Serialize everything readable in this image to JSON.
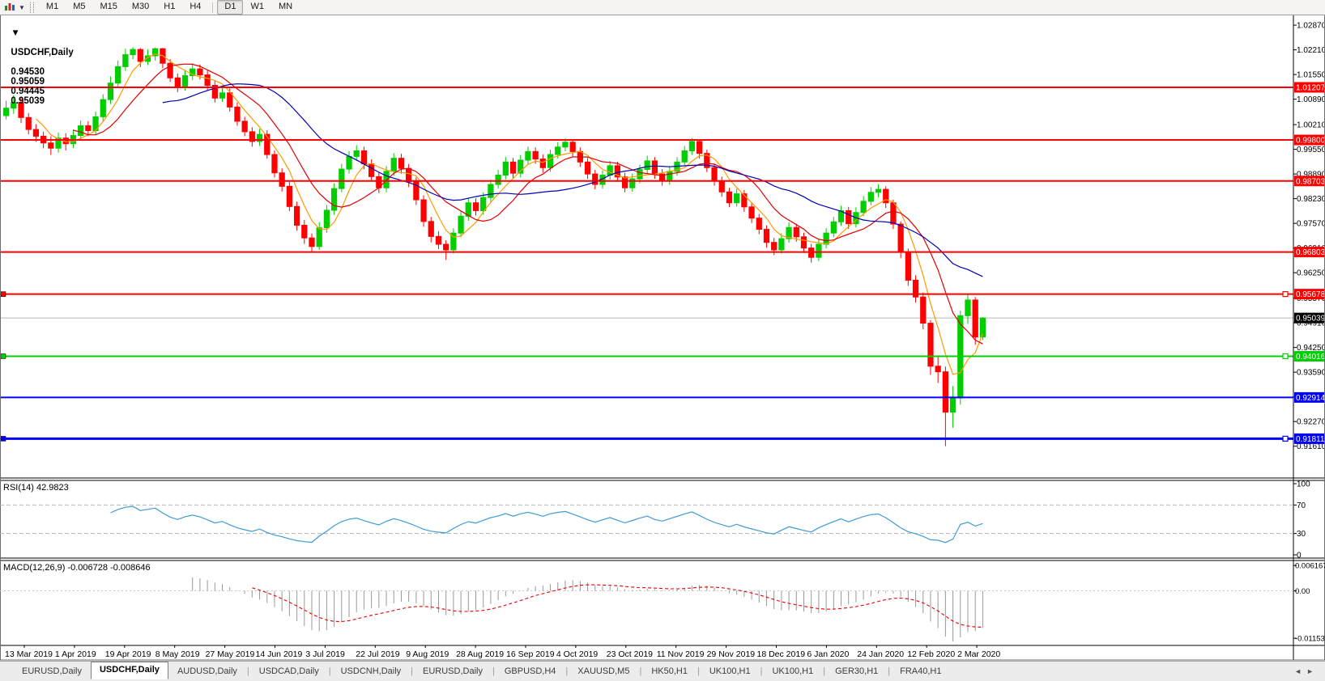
{
  "toolbar": {
    "timeframes": [
      "M1",
      "M5",
      "M15",
      "M30",
      "H1",
      "H4",
      "D1",
      "W1",
      "MN"
    ],
    "active_timeframe": "D1",
    "left_icons": [
      "chart-icon",
      "dropdown-caret-icon"
    ]
  },
  "chart_header": {
    "collapse_icon": "▼",
    "symbol": "USDCHF,Daily",
    "open": "0.94530",
    "high": "0.95059",
    "low": "0.94445",
    "close": "0.95039"
  },
  "chart_data": {
    "type": "candlestick",
    "symbol": "USDCHF",
    "timeframe": "Daily",
    "price_axis": {
      "min": 0.9076,
      "max": 1.0311,
      "ticks": [
        "1.02870",
        "1.02210",
        "1.01550",
        "1.00890",
        "1.00210",
        "0.99550",
        "0.98890",
        "0.98230",
        "0.97570",
        "0.96910",
        "0.96250",
        "0.95570",
        "0.94910",
        "0.94250",
        "0.93590",
        "0.92930",
        "0.92270",
        "0.91610"
      ]
    },
    "date_labels": [
      "13 Mar 2019",
      "1 Apr 2019",
      "19 Apr 2019",
      "8 May 2019",
      "27 May 2019",
      "14 Jun 2019",
      "3 Jul 2019",
      "22 Jul 2019",
      "9 Aug 2019",
      "28 Aug 2019",
      "16 Sep 2019",
      "4 Oct 2019",
      "23 Oct 2019",
      "11 Nov 2019",
      "29 Nov 2019",
      "18 Dec 2019",
      "6 Jan 2020",
      "24 Jan 2020",
      "12 Feb 2020",
      "2 Mar 2020"
    ],
    "colors": {
      "up": "#00CE00",
      "down": "#FF0000",
      "background": "#FFFFFF",
      "border": "#000000",
      "current_line": "#B8B8B8"
    },
    "moving_averages": [
      {
        "name": "MA fast",
        "period": 5,
        "color": "#FF9900"
      },
      {
        "name": "MA mid",
        "period": 10,
        "color": "#E00000"
      },
      {
        "name": "MA slow",
        "period": 22,
        "color": "#0000B4"
      }
    ],
    "hlines": [
      {
        "price": 1.01207,
        "label": "1.01207",
        "color": "#FF0000",
        "width": 2,
        "handles": false
      },
      {
        "price": 0.998,
        "label": "0.99800",
        "color": "#FF0000",
        "width": 2,
        "handles": false
      },
      {
        "price": 0.98703,
        "label": "0.98703",
        "color": "#FF0000",
        "width": 2,
        "handles": false
      },
      {
        "price": 0.96803,
        "label": "0.96803",
        "color": "#FF0000",
        "width": 2,
        "handles": false
      },
      {
        "price": 0.95678,
        "label": "0.95678",
        "color": "#FF0000",
        "width": 2,
        "handles": true
      },
      {
        "price": 0.94016,
        "label": "0.94016",
        "color": "#00CE00",
        "width": 2,
        "handles": true
      },
      {
        "price": 0.92914,
        "label": "0.92914",
        "color": "#0000FF",
        "width": 2,
        "handles": false
      },
      {
        "price": 0.91811,
        "label": "0.91811",
        "color": "#0000FF",
        "width": 3,
        "handles": true
      }
    ],
    "current_price": {
      "value": 0.95039,
      "label": "0.95039",
      "label_bg": "#000000"
    },
    "rsi": {
      "label": "RSI(14) 42.9823",
      "period": 14,
      "current_value": 42.9823,
      "ticks": [
        "100",
        "70",
        "30",
        "0"
      ],
      "levels": [
        70,
        30
      ],
      "color": "#3E9BD5"
    },
    "macd": {
      "label": "MACD(12,26,9) -0.006728 -0.008646",
      "fast": 12,
      "slow": 26,
      "signal": 9,
      "current_macd": -0.006728,
      "current_signal": -0.008646,
      "ticks": [
        "0.006167",
        "0.00",
        "-0.011533"
      ],
      "hist_color": "#999999",
      "signal_color": "#E80000"
    },
    "candles": [
      [
        1.0045,
        1.0085,
        1.0035,
        1.0065
      ],
      [
        1.0065,
        1.01,
        1.005,
        1.008
      ],
      [
        1.008,
        1.0095,
        1.0025,
        1.004
      ],
      [
        1.004,
        1.0052,
        0.9995,
        1.0008
      ],
      [
        1.0008,
        1.0022,
        0.9975,
        0.999
      ],
      [
        0.999,
        1.0002,
        0.9958,
        0.9972
      ],
      [
        0.9972,
        0.999,
        0.994,
        0.9958
      ],
      [
        0.9958,
        1.0,
        0.9946,
        0.9985
      ],
      [
        0.9985,
        0.9998,
        0.9952,
        0.997
      ],
      [
        0.997,
        1.0008,
        0.9958,
        0.9992
      ],
      [
        0.9992,
        1.0032,
        0.998,
        1.0018
      ],
      [
        1.0018,
        1.003,
        0.999,
        1.0005
      ],
      [
        1.0005,
        1.0056,
        0.9995,
        1.0042
      ],
      [
        1.0042,
        1.0102,
        1.003,
        1.0088
      ],
      [
        1.0088,
        1.015,
        1.0076,
        1.0132
      ],
      [
        1.0132,
        1.0192,
        1.012,
        1.0176
      ],
      [
        1.0176,
        1.0224,
        1.0165,
        1.0208
      ],
      [
        1.0208,
        1.0228,
        1.0196,
        1.0222
      ],
      [
        1.0222,
        1.0226,
        1.0175,
        1.019
      ],
      [
        1.019,
        1.0222,
        1.018,
        1.0205
      ],
      [
        1.0205,
        1.0227,
        1.0192,
        1.0224
      ],
      [
        1.0224,
        1.0226,
        1.0172,
        1.0185
      ],
      [
        1.0185,
        1.0196,
        1.0135,
        1.0146
      ],
      [
        1.0146,
        1.0158,
        1.0108,
        1.0122
      ],
      [
        1.0122,
        1.0165,
        1.0112,
        1.0152
      ],
      [
        1.0152,
        1.0185,
        1.014,
        1.017
      ],
      [
        1.017,
        1.0182,
        1.0142,
        1.0154
      ],
      [
        1.0154,
        1.0166,
        1.0112,
        1.0126
      ],
      [
        1.0126,
        1.0138,
        1.008,
        1.0092
      ],
      [
        1.0092,
        1.012,
        1.0082,
        1.0106
      ],
      [
        1.0106,
        1.0118,
        1.0056,
        1.0068
      ],
      [
        1.0068,
        1.008,
        1.0018,
        1.003
      ],
      [
        1.003,
        1.0042,
        0.999,
        1.0002
      ],
      [
        1.0002,
        1.0014,
        0.9962,
        0.9976
      ],
      [
        0.9976,
        1.001,
        0.9964,
        0.9995
      ],
      [
        0.9995,
        1.0006,
        0.993,
        0.9941
      ],
      [
        0.9941,
        0.9952,
        0.988,
        0.9892
      ],
      [
        0.9892,
        0.9904,
        0.9842,
        0.9856
      ],
      [
        0.9856,
        0.9868,
        0.979,
        0.9802
      ],
      [
        0.9802,
        0.9815,
        0.9738,
        0.9752
      ],
      [
        0.9752,
        0.9766,
        0.9702,
        0.9718
      ],
      [
        0.9718,
        0.973,
        0.968,
        0.9695
      ],
      [
        0.9695,
        0.976,
        0.9686,
        0.9745
      ],
      [
        0.9745,
        0.9806,
        0.9732,
        0.9792
      ],
      [
        0.9792,
        0.9864,
        0.978,
        0.985
      ],
      [
        0.985,
        0.9916,
        0.984,
        0.9902
      ],
      [
        0.9902,
        0.995,
        0.989,
        0.9936
      ],
      [
        0.9936,
        0.9966,
        0.9924,
        0.9951
      ],
      [
        0.9951,
        0.9962,
        0.9902,
        0.9916
      ],
      [
        0.9916,
        0.9928,
        0.9868,
        0.9882
      ],
      [
        0.9882,
        0.9894,
        0.9838,
        0.9852
      ],
      [
        0.9852,
        0.991,
        0.984,
        0.9896
      ],
      [
        0.9896,
        0.9945,
        0.9884,
        0.9931
      ],
      [
        0.9931,
        0.9943,
        0.989,
        0.9904
      ],
      [
        0.9904,
        0.9916,
        0.9854,
        0.9868
      ],
      [
        0.9868,
        0.988,
        0.9806,
        0.982
      ],
      [
        0.982,
        0.9832,
        0.9748,
        0.9762
      ],
      [
        0.9762,
        0.9774,
        0.9706,
        0.9722
      ],
      [
        0.9722,
        0.9736,
        0.9688,
        0.9701
      ],
      [
        0.9701,
        0.9712,
        0.9659,
        0.9686
      ],
      [
        0.9686,
        0.9744,
        0.9676,
        0.9731
      ],
      [
        0.9731,
        0.979,
        0.972,
        0.9776
      ],
      [
        0.9776,
        0.9826,
        0.9764,
        0.9812
      ],
      [
        0.9812,
        0.9824,
        0.9778,
        0.9791
      ],
      [
        0.9791,
        0.984,
        0.978,
        0.9826
      ],
      [
        0.9826,
        0.9874,
        0.9814,
        0.9861
      ],
      [
        0.9861,
        0.99,
        0.985,
        0.9886
      ],
      [
        0.9886,
        0.9935,
        0.9874,
        0.9921
      ],
      [
        0.9921,
        0.9932,
        0.9878,
        0.9891
      ],
      [
        0.9891,
        0.994,
        0.988,
        0.9926
      ],
      [
        0.9926,
        0.9962,
        0.9914,
        0.9949
      ],
      [
        0.9949,
        0.996,
        0.9916,
        0.9929
      ],
      [
        0.9929,
        0.9941,
        0.9892,
        0.9906
      ],
      [
        0.9906,
        0.9954,
        0.9895,
        0.9941
      ],
      [
        0.9941,
        0.9974,
        0.993,
        0.9961
      ],
      [
        0.9961,
        0.9984,
        0.995,
        0.9974
      ],
      [
        0.9974,
        0.998,
        0.9936,
        0.9949
      ],
      [
        0.9949,
        0.996,
        0.9908,
        0.9921
      ],
      [
        0.9921,
        0.9932,
        0.9876,
        0.9889
      ],
      [
        0.9889,
        0.99,
        0.9848,
        0.9861
      ],
      [
        0.9861,
        0.9898,
        0.985,
        0.9886
      ],
      [
        0.9886,
        0.9924,
        0.9874,
        0.9911
      ],
      [
        0.9911,
        0.9922,
        0.9868,
        0.9881
      ],
      [
        0.9881,
        0.9892,
        0.984,
        0.9852
      ],
      [
        0.9852,
        0.989,
        0.9842,
        0.9876
      ],
      [
        0.9876,
        0.9914,
        0.9864,
        0.9901
      ],
      [
        0.9901,
        0.9938,
        0.989,
        0.9924
      ],
      [
        0.9924,
        0.9934,
        0.9876,
        0.9889
      ],
      [
        0.9889,
        0.9902,
        0.9858,
        0.9871
      ],
      [
        0.9871,
        0.991,
        0.986,
        0.9896
      ],
      [
        0.9896,
        0.9934,
        0.9884,
        0.9921
      ],
      [
        0.9921,
        0.9964,
        0.991,
        0.9951
      ],
      [
        0.9951,
        0.9985,
        0.994,
        0.9976
      ],
      [
        0.9976,
        0.9982,
        0.993,
        0.9944
      ],
      [
        0.9944,
        0.9954,
        0.9894,
        0.9906
      ],
      [
        0.9906,
        0.9918,
        0.9858,
        0.9871
      ],
      [
        0.9871,
        0.9882,
        0.9828,
        0.9841
      ],
      [
        0.9841,
        0.9852,
        0.98,
        0.9812
      ],
      [
        0.9812,
        0.985,
        0.9802,
        0.9836
      ],
      [
        0.9836,
        0.9846,
        0.9788,
        0.9801
      ],
      [
        0.9801,
        0.9812,
        0.9758,
        0.9771
      ],
      [
        0.9771,
        0.9782,
        0.9728,
        0.9741
      ],
      [
        0.9741,
        0.9752,
        0.9692,
        0.9706
      ],
      [
        0.9706,
        0.9718,
        0.9672,
        0.9686
      ],
      [
        0.9686,
        0.973,
        0.9676,
        0.9716
      ],
      [
        0.9716,
        0.976,
        0.9705,
        0.9746
      ],
      [
        0.9746,
        0.9756,
        0.9708,
        0.9721
      ],
      [
        0.9721,
        0.9732,
        0.9678,
        0.9691
      ],
      [
        0.9691,
        0.9702,
        0.9652,
        0.9666
      ],
      [
        0.9666,
        0.9714,
        0.9656,
        0.9701
      ],
      [
        0.9701,
        0.9744,
        0.969,
        0.9731
      ],
      [
        0.9731,
        0.9774,
        0.972,
        0.9761
      ],
      [
        0.9761,
        0.9804,
        0.975,
        0.9791
      ],
      [
        0.9791,
        0.9801,
        0.9742,
        0.9756
      ],
      [
        0.9756,
        0.98,
        0.9746,
        0.9786
      ],
      [
        0.9786,
        0.983,
        0.9776,
        0.9816
      ],
      [
        0.9816,
        0.9854,
        0.9806,
        0.984
      ],
      [
        0.984,
        0.9862,
        0.9826,
        0.9848
      ],
      [
        0.9848,
        0.9856,
        0.9798,
        0.9812
      ],
      [
        0.9812,
        0.982,
        0.9742,
        0.9755
      ],
      [
        0.9755,
        0.9762,
        0.9664,
        0.968
      ],
      [
        0.968,
        0.969,
        0.959,
        0.9605
      ],
      [
        0.9605,
        0.9618,
        0.9545,
        0.956
      ],
      [
        0.956,
        0.9572,
        0.9474,
        0.949
      ],
      [
        0.949,
        0.9498,
        0.9352,
        0.9375
      ],
      [
        0.9375,
        0.9402,
        0.933,
        0.936
      ],
      [
        0.936,
        0.9374,
        0.9161,
        0.9252
      ],
      [
        0.9252,
        0.9322,
        0.921,
        0.929
      ],
      [
        0.929,
        0.9524,
        0.9272,
        0.951
      ],
      [
        0.951,
        0.9568,
        0.9488,
        0.9552
      ],
      [
        0.9552,
        0.956,
        0.9432,
        0.9453
      ],
      [
        0.9453,
        0.95059,
        0.94445,
        0.95039
      ]
    ]
  },
  "tabs": {
    "items": [
      "EURUSD,Daily",
      "USDCHF,Daily",
      "AUDUSD,Daily",
      "USDCAD,Daily",
      "USDCNH,Daily",
      "EURUSD,Daily",
      "GBPUSD,H4",
      "XAUUSD,M5",
      "HK50,H1",
      "UK100,H1",
      "UK100,H1",
      "GER30,H1",
      "FRA40,H1"
    ],
    "active_index": 1,
    "scroll_left_icon": "◄",
    "scroll_right_icon": "►"
  }
}
